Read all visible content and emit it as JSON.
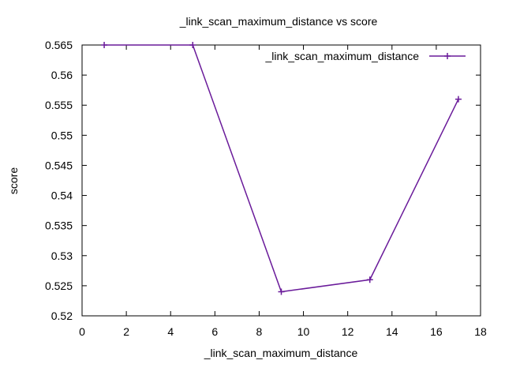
{
  "chart_data": {
    "type": "line",
    "title": "_link_scan_maximum_distance vs score",
    "xlabel": "_link_scan_maximum_distance",
    "ylabel": "score",
    "xlim": [
      0,
      18
    ],
    "ylim": [
      0.52,
      0.565
    ],
    "xticks": [
      0,
      2,
      4,
      6,
      8,
      10,
      12,
      14,
      16,
      18
    ],
    "yticks": [
      "0.52",
      "0.525",
      "0.53",
      "0.535",
      "0.54",
      "0.545",
      "0.55",
      "0.555",
      "0.56",
      "0.565"
    ],
    "legend_position": "top-right",
    "grid": false,
    "series": [
      {
        "name": "_link_scan_maximum_distance",
        "color": "#6a1b9a",
        "x": [
          1,
          5,
          9,
          13,
          17
        ],
        "y": [
          0.565,
          0.565,
          0.524,
          0.526,
          0.556
        ]
      }
    ]
  }
}
